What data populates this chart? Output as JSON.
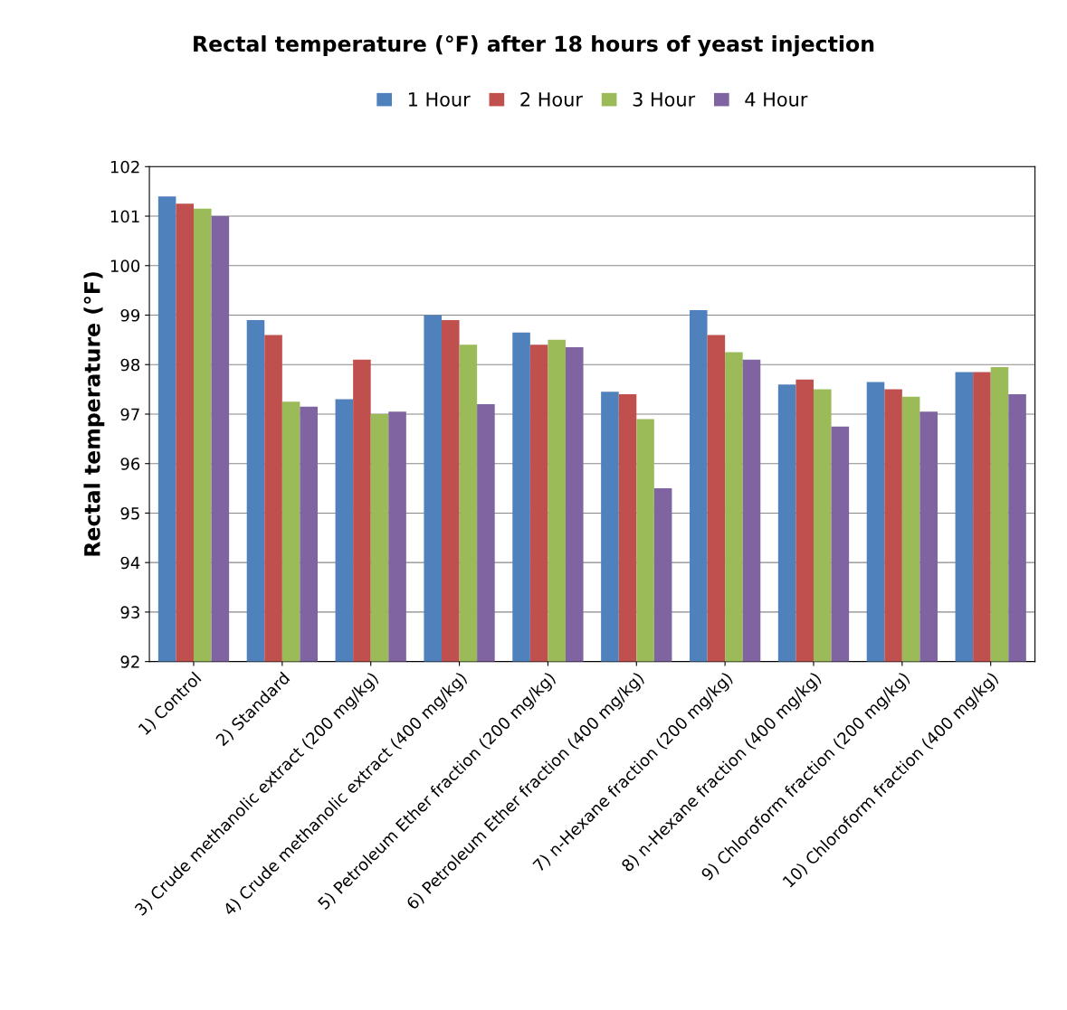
{
  "chart_data": {
    "type": "bar",
    "title": "Rectal temperature (°F) after 18 hours of yeast injection",
    "ylabel": "Rectal temperature (°F)",
    "categories": [
      "1) Control",
      "2) Standard",
      "3) Crude methanolic extract (200 mg/kg)",
      "4) Crude methanolic extract (400 mg/kg)",
      "5) Petroleum Ether fraction (200 mg/kg)",
      "6) Petroleum Ether fraction (400 mg/kg)",
      "7) n-Hexane fraction (200 mg/kg)",
      "8) n-Hexane fraction (400 mg/kg)",
      "9) Chloroform fraction (200 mg/kg)",
      "10) Chloroform fraction (400 mg/kg)"
    ],
    "series": [
      {
        "name": "1 Hour",
        "color": "#4f81bd",
        "values": [
          101.4,
          98.9,
          97.3,
          99.0,
          98.65,
          97.45,
          99.1,
          97.6,
          97.65,
          97.85
        ]
      },
      {
        "name": "2 Hour",
        "color": "#c0504d",
        "values": [
          101.25,
          98.6,
          98.1,
          98.9,
          98.4,
          97.4,
          98.6,
          97.7,
          97.5,
          97.85
        ]
      },
      {
        "name": "3 Hour",
        "color": "#9bbb59",
        "values": [
          101.15,
          97.25,
          97.0,
          98.4,
          98.5,
          96.9,
          98.25,
          97.5,
          97.35,
          97.95
        ]
      },
      {
        "name": "4 Hour",
        "color": "#8064a2",
        "values": [
          101.0,
          97.15,
          97.05,
          97.2,
          98.35,
          95.5,
          98.1,
          96.75,
          97.05,
          97.4
        ]
      }
    ],
    "ylim": [
      92,
      102
    ],
    "yticks": [
      92,
      93,
      94,
      95,
      96,
      97,
      98,
      99,
      100,
      101,
      102
    ],
    "grid": "y",
    "legend": "top"
  }
}
